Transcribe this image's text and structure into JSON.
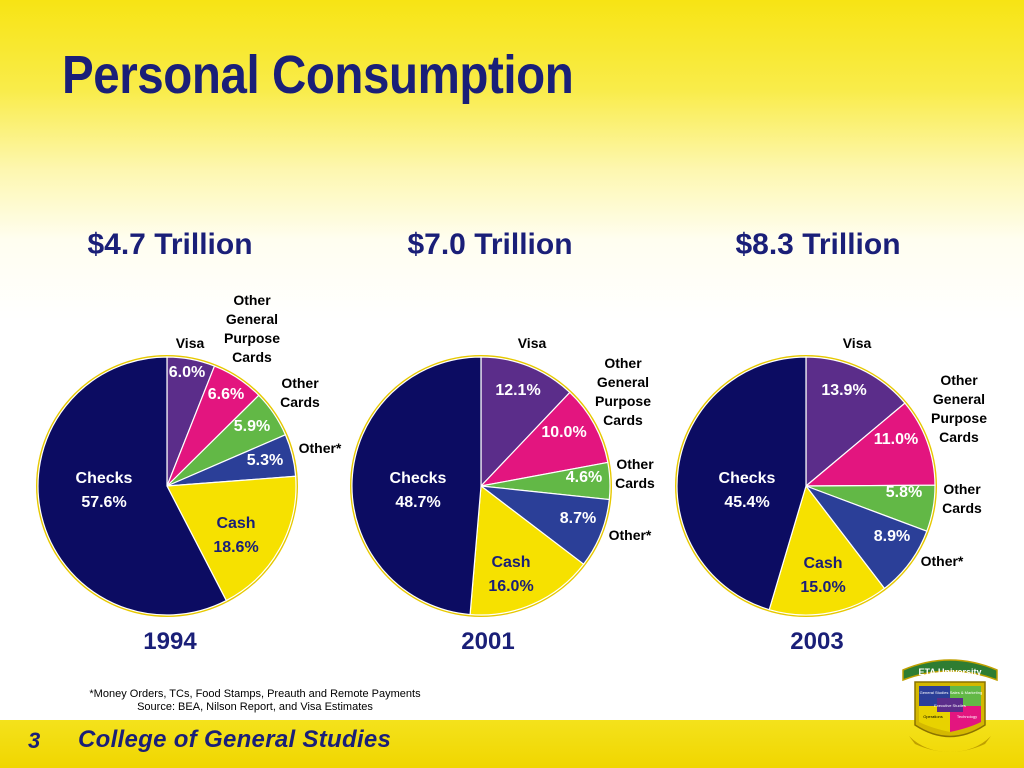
{
  "title": "Personal Consumption",
  "footnote": "*Money Orders, TCs, Food Stamps, Preauth and Remote Payments",
  "source": "Source: BEA, Nilson Report, and Visa Estimates",
  "footer": {
    "page_number": "3",
    "college": "College of General Studies"
  },
  "logo": {
    "banner": "ETA University",
    "quadrants": [
      "General Studies",
      "Sales & Marketing",
      "Operations",
      "Technology"
    ],
    "center": "Executive Studies"
  },
  "colors": {
    "Visa": "#5b2d8a",
    "Other General Purpose Cards": "#e3157f",
    "Other Cards": "#62b846",
    "Other*": "#2b3f98",
    "Cash": "#f6e100",
    "Checks": "#0c0c62",
    "title": "#1a1f78"
  },
  "chart_data": [
    {
      "type": "pie",
      "title": "$4.7 Trillion",
      "xlabel": "1994",
      "slices": [
        {
          "label": "Visa",
          "value": 6.0,
          "display": "6.0%"
        },
        {
          "label": "Other General Purpose Cards",
          "value": 6.6,
          "display": "6.6%"
        },
        {
          "label": "Other Cards",
          "value": 5.9,
          "display": "5.9%"
        },
        {
          "label": "Other*",
          "value": 5.3,
          "display": "5.3%"
        },
        {
          "label": "Cash",
          "value": 18.6,
          "display": "18.6%"
        },
        {
          "label": "Checks",
          "value": 57.6,
          "display": "57.6%"
        }
      ]
    },
    {
      "type": "pie",
      "title": "$7.0 Trillion",
      "xlabel": "2001",
      "slices": [
        {
          "label": "Visa",
          "value": 12.1,
          "display": "12.1%"
        },
        {
          "label": "Other General Purpose Cards",
          "value": 10.0,
          "display": "10.0%"
        },
        {
          "label": "Other Cards",
          "value": 4.6,
          "display": "4.6%"
        },
        {
          "label": "Other*",
          "value": 8.7,
          "display": "8.7%"
        },
        {
          "label": "Cash",
          "value": 16.0,
          "display": "16.0%"
        },
        {
          "label": "Checks",
          "value": 48.7,
          "display": "48.7%"
        }
      ]
    },
    {
      "type": "pie",
      "title": "$8.3 Trillion",
      "xlabel": "2003",
      "slices": [
        {
          "label": "Visa",
          "value": 13.9,
          "display": "13.9%"
        },
        {
          "label": "Other General Purpose Cards",
          "value": 11.0,
          "display": "11.0%"
        },
        {
          "label": "Other Cards",
          "value": 5.8,
          "display": "5.8%"
        },
        {
          "label": "Other*",
          "value": 8.9,
          "display": "8.9%"
        },
        {
          "label": "Cash",
          "value": 15.0,
          "display": "15.0%"
        },
        {
          "label": "Checks",
          "value": 45.4,
          "display": "45.4%"
        }
      ]
    }
  ]
}
